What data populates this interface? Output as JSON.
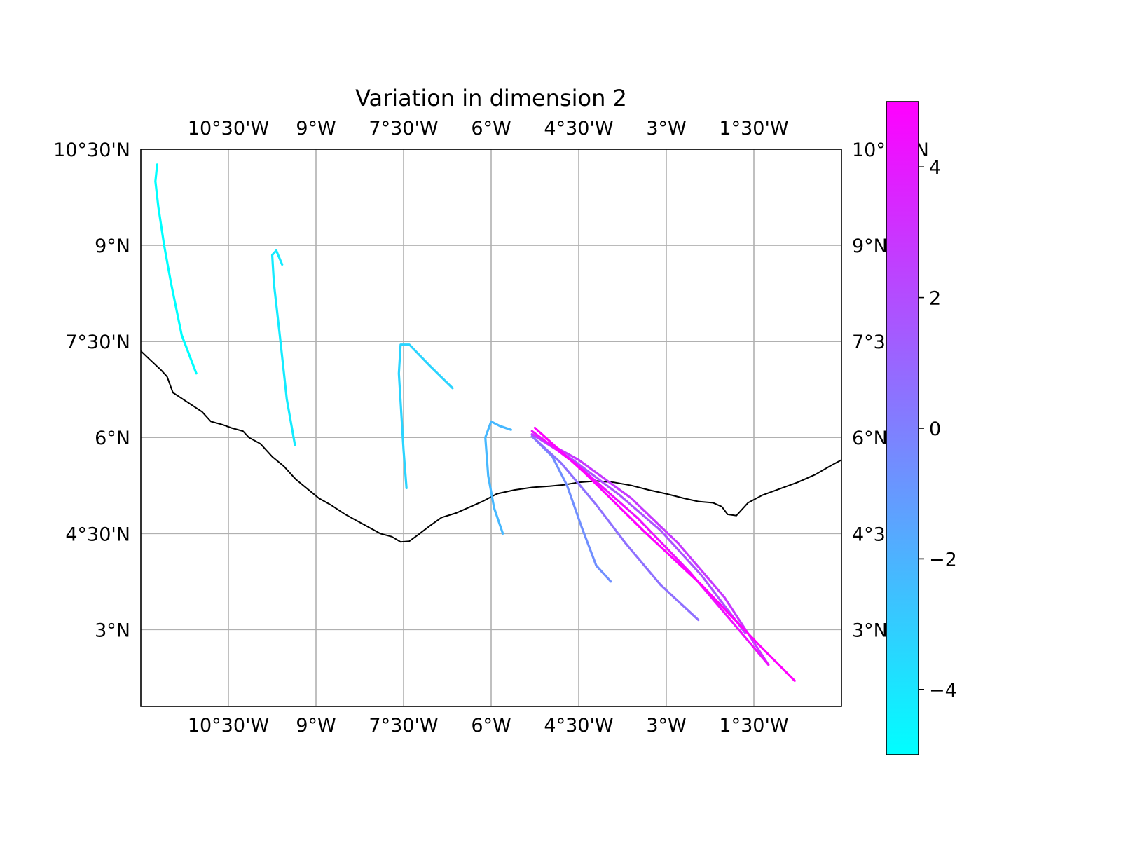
{
  "title": "Variation in dimension 2",
  "chart_data": {
    "type": "line",
    "title": "Variation in dimension 2",
    "xlim": [
      -12.0,
      0.0
    ],
    "ylim": [
      1.8,
      10.5
    ],
    "x_ticks": [
      {
        "value": -10.5,
        "label": "10°30'W"
      },
      {
        "value": -9.0,
        "label": "9°W"
      },
      {
        "value": -7.5,
        "label": "7°30'W"
      },
      {
        "value": -6.0,
        "label": "6°W"
      },
      {
        "value": -4.5,
        "label": "4°30'W"
      },
      {
        "value": -3.0,
        "label": "3°W"
      },
      {
        "value": -1.5,
        "label": "1°30'W"
      }
    ],
    "y_ticks": [
      {
        "value": 10.5,
        "label": "10°30'N"
      },
      {
        "value": 9.0,
        "label": "9°N"
      },
      {
        "value": 7.5,
        "label": "7°30'N"
      },
      {
        "value": 6.0,
        "label": "6°N"
      },
      {
        "value": 4.5,
        "label": "4°30'N"
      },
      {
        "value": 3.0,
        "label": "3°N"
      }
    ],
    "grid": true,
    "coastline": [
      [
        -12.0,
        7.35
      ],
      [
        -11.85,
        7.22
      ],
      [
        -11.65,
        7.05
      ],
      [
        -11.55,
        6.95
      ],
      [
        -11.45,
        6.7
      ],
      [
        -11.2,
        6.55
      ],
      [
        -10.95,
        6.4
      ],
      [
        -10.8,
        6.25
      ],
      [
        -10.6,
        6.2
      ],
      [
        -10.45,
        6.15
      ],
      [
        -10.25,
        6.1
      ],
      [
        -10.15,
        6.0
      ],
      [
        -9.95,
        5.9
      ],
      [
        -9.75,
        5.7
      ],
      [
        -9.55,
        5.55
      ],
      [
        -9.35,
        5.35
      ],
      [
        -9.15,
        5.2
      ],
      [
        -8.95,
        5.05
      ],
      [
        -8.75,
        4.95
      ],
      [
        -8.5,
        4.8
      ],
      [
        -8.3,
        4.7
      ],
      [
        -8.1,
        4.6
      ],
      [
        -7.9,
        4.5
      ],
      [
        -7.7,
        4.45
      ],
      [
        -7.55,
        4.37
      ],
      [
        -7.4,
        4.38
      ],
      [
        -7.25,
        4.48
      ],
      [
        -7.05,
        4.62
      ],
      [
        -6.85,
        4.75
      ],
      [
        -6.6,
        4.82
      ],
      [
        -6.4,
        4.9
      ],
      [
        -6.15,
        5.0
      ],
      [
        -5.9,
        5.12
      ],
      [
        -5.6,
        5.18
      ],
      [
        -5.3,
        5.22
      ],
      [
        -5.0,
        5.24
      ],
      [
        -4.75,
        5.26
      ],
      [
        -4.5,
        5.3
      ],
      [
        -4.2,
        5.32
      ],
      [
        -3.9,
        5.3
      ],
      [
        -3.6,
        5.25
      ],
      [
        -3.3,
        5.18
      ],
      [
        -3.0,
        5.12
      ],
      [
        -2.7,
        5.05
      ],
      [
        -2.45,
        5.0
      ],
      [
        -2.2,
        4.98
      ],
      [
        -2.05,
        4.92
      ],
      [
        -1.95,
        4.8
      ],
      [
        -1.8,
        4.78
      ],
      [
        -1.6,
        4.98
      ],
      [
        -1.35,
        5.1
      ],
      [
        -1.05,
        5.2
      ],
      [
        -0.75,
        5.3
      ],
      [
        -0.45,
        5.42
      ],
      [
        -0.2,
        5.55
      ],
      [
        0.0,
        5.65
      ]
    ],
    "colorbar": {
      "colormap": "cool",
      "min": -5.0,
      "max": 5.0,
      "ticks": [
        {
          "value": 4,
          "label": "4"
        },
        {
          "value": 2,
          "label": "2"
        },
        {
          "value": 0,
          "label": "0"
        },
        {
          "value": -2,
          "label": "−2"
        },
        {
          "value": -4,
          "label": "−4"
        }
      ]
    },
    "series": [
      {
        "value": -5.0,
        "x": [
          -11.72,
          -11.75,
          -11.7,
          -11.6,
          -11.48,
          -11.3,
          -11.05
        ],
        "y": [
          10.26,
          10.0,
          9.6,
          9.0,
          8.4,
          7.6,
          7.0
        ]
      },
      {
        "value": -4.2,
        "x": [
          -9.58,
          -9.68,
          -9.75,
          -9.72,
          -9.62,
          -9.5,
          -9.36
        ],
        "y": [
          8.7,
          8.92,
          8.85,
          8.4,
          7.6,
          6.6,
          5.88
        ]
      },
      {
        "value": -3.3,
        "x": [
          -6.66,
          -7.05,
          -7.4,
          -7.55,
          -7.58,
          -7.5,
          -7.45
        ],
        "y": [
          6.77,
          7.12,
          7.45,
          7.45,
          7.0,
          5.8,
          5.21
        ]
      },
      {
        "value": -2.2,
        "x": [
          -5.66,
          -5.85,
          -6.0,
          -6.1,
          -6.05,
          -5.95,
          -5.8
        ],
        "y": [
          6.12,
          6.18,
          6.25,
          6.0,
          5.4,
          4.9,
          4.5
        ]
      },
      {
        "value": -0.6,
        "x": [
          -5.3,
          -4.95,
          -4.7,
          -4.45,
          -4.2,
          -3.95
        ],
        "y": [
          6.02,
          5.7,
          5.25,
          4.6,
          4.0,
          3.75
        ]
      },
      {
        "value": 0.6,
        "x": [
          -5.3,
          -4.8,
          -4.2,
          -3.7,
          -3.1,
          -2.45
        ],
        "y": [
          6.02,
          5.6,
          4.95,
          4.35,
          3.7,
          3.15
        ]
      },
      {
        "value": 1.8,
        "x": [
          -5.3,
          -4.6,
          -3.8,
          -3.1,
          -2.4,
          -1.65
        ],
        "y": [
          6.05,
          5.65,
          5.1,
          4.55,
          3.85,
          2.95
        ]
      },
      {
        "value": 2.8,
        "x": [
          -5.3,
          -4.5,
          -3.6,
          -2.8,
          -2.0,
          -1.25
        ],
        "y": [
          6.05,
          5.65,
          5.05,
          4.35,
          3.5,
          2.45
        ]
      },
      {
        "value": 4.3,
        "x": [
          -5.3,
          -4.5,
          -3.5,
          -2.6,
          -1.9,
          -1.25
        ],
        "y": [
          6.1,
          5.55,
          4.75,
          3.9,
          3.15,
          2.45
        ]
      },
      {
        "value": 5.0,
        "x": [
          -5.25,
          -4.4,
          -3.4,
          -2.4,
          -1.4,
          -0.8
        ],
        "y": [
          6.15,
          5.45,
          4.55,
          3.7,
          2.75,
          2.2
        ]
      }
    ]
  }
}
